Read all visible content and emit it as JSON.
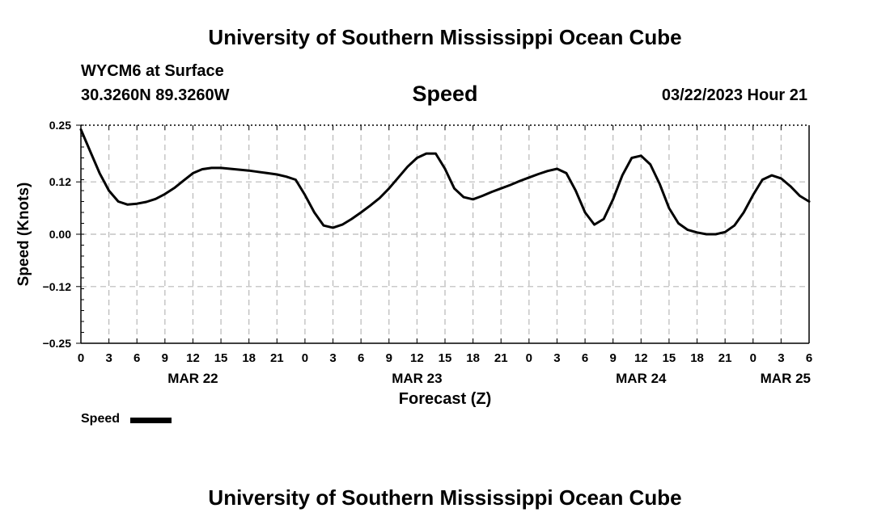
{
  "header": {
    "title": "University of Southern Mississippi Ocean Cube",
    "station": "WYCM6 at Surface",
    "coords": "30.3260N  89.3260W",
    "chart_title": "Speed",
    "run_time": "03/22/2023 Hour 21"
  },
  "footer": {
    "title": "University of Southern Mississippi Ocean Cube"
  },
  "legend": {
    "label": "Speed",
    "color": "#000000"
  },
  "chart_data": {
    "type": "line",
    "title": "Speed",
    "xlabel": "Forecast (Z)",
    "ylabel": "Speed (Knots)",
    "xlim": [
      0,
      78
    ],
    "ylim": [
      -0.25,
      0.25
    ],
    "grid": true,
    "legend_position": "bottom-left",
    "y_ticks": [
      -0.25,
      -0.12,
      0.0,
      0.12,
      0.25
    ],
    "y_tick_labels": [
      "−0.25",
      "−0.12",
      "0.00",
      "0.12",
      "0.25"
    ],
    "x_ticks": [
      0,
      3,
      6,
      9,
      12,
      15,
      18,
      21,
      24,
      27,
      30,
      33,
      36,
      39,
      42,
      45,
      48,
      51,
      54,
      57,
      60,
      63,
      66,
      69,
      72,
      75,
      78
    ],
    "x_tick_labels": [
      "0",
      "3",
      "6",
      "9",
      "12",
      "15",
      "18",
      "21",
      "0",
      "3",
      "6",
      "9",
      "12",
      "15",
      "18",
      "21",
      "0",
      "3",
      "6",
      "9",
      "12",
      "15",
      "18",
      "21",
      "0",
      "3",
      "6"
    ],
    "date_labels": [
      {
        "x": 12,
        "label": "MAR 22"
      },
      {
        "x": 36,
        "label": "MAR 23"
      },
      {
        "x": 60,
        "label": "MAR 24"
      },
      {
        "x": 78,
        "label": "MAR 25"
      }
    ],
    "series": [
      {
        "name": "Speed",
        "color": "#000000",
        "x": [
          0,
          1,
          2,
          3,
          4,
          5,
          6,
          7,
          8,
          9,
          10,
          11,
          12,
          13,
          14,
          15,
          16,
          17,
          18,
          19,
          20,
          21,
          22,
          23,
          24,
          25,
          26,
          27,
          28,
          29,
          30,
          31,
          32,
          33,
          34,
          35,
          36,
          37,
          38,
          39,
          40,
          41,
          42,
          43,
          44,
          45,
          46,
          47,
          48,
          49,
          50,
          51,
          52,
          53,
          54,
          55,
          56,
          57,
          58,
          59,
          60,
          61,
          62,
          63,
          64,
          65,
          66,
          67,
          68,
          69,
          70,
          71,
          72,
          73,
          74,
          75,
          76,
          77,
          78
        ],
        "values": [
          0.24,
          0.19,
          0.14,
          0.1,
          0.075,
          0.068,
          0.07,
          0.074,
          0.081,
          0.092,
          0.106,
          0.123,
          0.14,
          0.149,
          0.152,
          0.152,
          0.15,
          0.148,
          0.146,
          0.143,
          0.14,
          0.137,
          0.132,
          0.125,
          0.09,
          0.05,
          0.02,
          0.015,
          0.022,
          0.035,
          0.05,
          0.066,
          0.083,
          0.105,
          0.13,
          0.155,
          0.175,
          0.185,
          0.185,
          0.15,
          0.105,
          0.085,
          0.08,
          0.088,
          0.097,
          0.105,
          0.113,
          0.122,
          0.13,
          0.138,
          0.145,
          0.15,
          0.14,
          0.1,
          0.05,
          0.022,
          0.035,
          0.08,
          0.135,
          0.175,
          0.18,
          0.16,
          0.115,
          0.06,
          0.025,
          0.01,
          0.004,
          0.0,
          0.0,
          0.005,
          0.02,
          0.05,
          0.09,
          0.125,
          0.135,
          0.128,
          0.11,
          0.088,
          0.075
        ]
      }
    ]
  }
}
